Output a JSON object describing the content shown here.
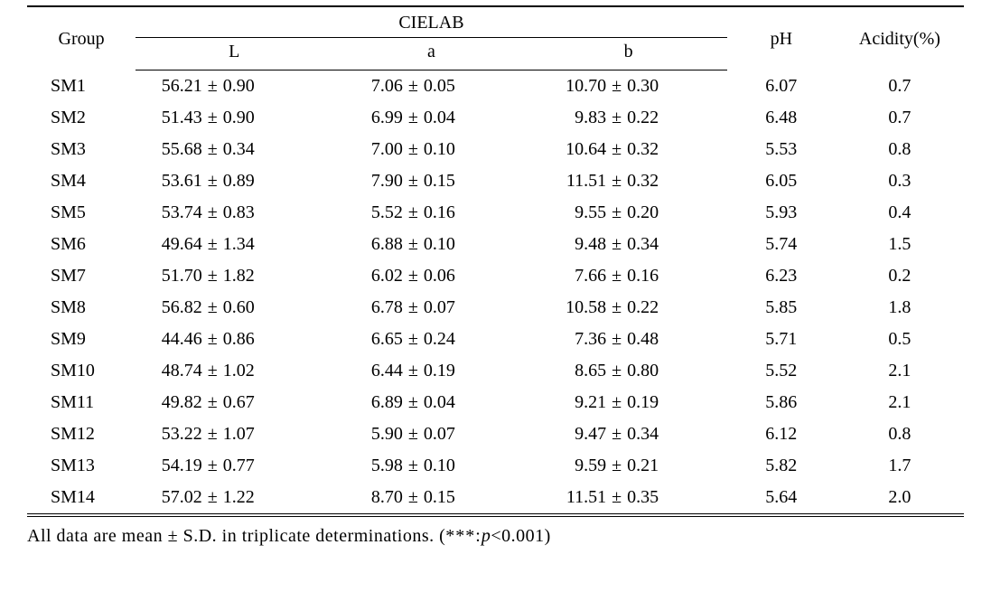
{
  "colors": {
    "text": "#000000",
    "background": "#ffffff",
    "rule": "#000000"
  },
  "font": {
    "family": "Georgia, 'Times New Roman', serif",
    "size_pt": 15
  },
  "table": {
    "type": "table",
    "headers": {
      "group": "Group",
      "cielab": "CIELAB",
      "L": "L",
      "a": "a",
      "b": "b",
      "pH": "pH",
      "acidity": "Acidity(%)"
    },
    "rows": [
      {
        "group": "SM1",
        "L": {
          "v": "56.21",
          "sd": "0.90"
        },
        "a": {
          "v": "7.06",
          "sd": "0.05"
        },
        "b": {
          "v": "10.70",
          "sd": "0.30"
        },
        "pH": "6.07",
        "acidity": "0.7"
      },
      {
        "group": "SM2",
        "L": {
          "v": "51.43",
          "sd": "0.90"
        },
        "a": {
          "v": "6.99",
          "sd": "0.04"
        },
        "b": {
          "v": "9.83",
          "sd": "0.22"
        },
        "pH": "6.48",
        "acidity": "0.7"
      },
      {
        "group": "SM3",
        "L": {
          "v": "55.68",
          "sd": "0.34"
        },
        "a": {
          "v": "7.00",
          "sd": "0.10"
        },
        "b": {
          "v": "10.64",
          "sd": "0.32"
        },
        "pH": "5.53",
        "acidity": "0.8"
      },
      {
        "group": "SM4",
        "L": {
          "v": "53.61",
          "sd": "0.89"
        },
        "a": {
          "v": "7.90",
          "sd": "0.15"
        },
        "b": {
          "v": "11.51",
          "sd": "0.32"
        },
        "pH": "6.05",
        "acidity": "0.3"
      },
      {
        "group": "SM5",
        "L": {
          "v": "53.74",
          "sd": "0.83"
        },
        "a": {
          "v": "5.52",
          "sd": "0.16"
        },
        "b": {
          "v": "9.55",
          "sd": "0.20"
        },
        "pH": "5.93",
        "acidity": "0.4"
      },
      {
        "group": "SM6",
        "L": {
          "v": "49.64",
          "sd": "1.34"
        },
        "a": {
          "v": "6.88",
          "sd": "0.10"
        },
        "b": {
          "v": "9.48",
          "sd": "0.34"
        },
        "pH": "5.74",
        "acidity": "1.5"
      },
      {
        "group": "SM7",
        "L": {
          "v": "51.70",
          "sd": "1.82"
        },
        "a": {
          "v": "6.02",
          "sd": "0.06"
        },
        "b": {
          "v": "7.66",
          "sd": "0.16"
        },
        "pH": "6.23",
        "acidity": "0.2"
      },
      {
        "group": "SM8",
        "L": {
          "v": "56.82",
          "sd": "0.60"
        },
        "a": {
          "v": "6.78",
          "sd": "0.07"
        },
        "b": {
          "v": "10.58",
          "sd": "0.22"
        },
        "pH": "5.85",
        "acidity": "1.8"
      },
      {
        "group": "SM9",
        "L": {
          "v": "44.46",
          "sd": "0.86"
        },
        "a": {
          "v": "6.65",
          "sd": "0.24"
        },
        "b": {
          "v": "7.36",
          "sd": "0.48"
        },
        "pH": "5.71",
        "acidity": "0.5"
      },
      {
        "group": "SM10",
        "L": {
          "v": "48.74",
          "sd": "1.02"
        },
        "a": {
          "v": "6.44",
          "sd": "0.19"
        },
        "b": {
          "v": "8.65",
          "sd": "0.80"
        },
        "pH": "5.52",
        "acidity": "2.1"
      },
      {
        "group": "SM11",
        "L": {
          "v": "49.82",
          "sd": "0.67"
        },
        "a": {
          "v": "6.89",
          "sd": "0.04"
        },
        "b": {
          "v": "9.21",
          "sd": "0.19"
        },
        "pH": "5.86",
        "acidity": "2.1"
      },
      {
        "group": "SM12",
        "L": {
          "v": "53.22",
          "sd": "1.07"
        },
        "a": {
          "v": "5.90",
          "sd": "0.07"
        },
        "b": {
          "v": "9.47",
          "sd": "0.34"
        },
        "pH": "6.12",
        "acidity": "0.8"
      },
      {
        "group": "SM13",
        "L": {
          "v": "54.19",
          "sd": "0.77"
        },
        "a": {
          "v": "5.98",
          "sd": "0.10"
        },
        "b": {
          "v": "9.59",
          "sd": "0.21"
        },
        "pH": "5.82",
        "acidity": "1.7"
      },
      {
        "group": "SM14",
        "L": {
          "v": "57.02",
          "sd": "1.22"
        },
        "a": {
          "v": "8.70",
          "sd": "0.15"
        },
        "b": {
          "v": "11.51",
          "sd": "0.35"
        },
        "pH": "5.64",
        "acidity": "2.0"
      }
    ],
    "pm_symbol": "±"
  },
  "footnote": {
    "prefix": "All data are mean ± S.D. in triplicate determinations. (",
    "stars": "***:",
    "pvar": "p",
    "ptail": "<0.001)"
  }
}
